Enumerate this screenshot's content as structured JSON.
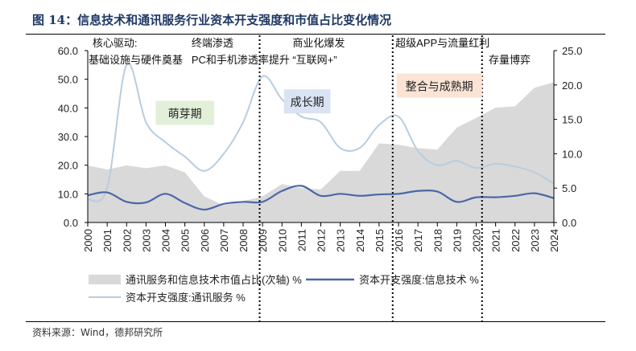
{
  "title": "图 14：信息技术和通讯服务行业资本开支强度和市值占比变化情况",
  "source": "资料来源：Wind，德邦研究所",
  "chart_data": {
    "type": "line",
    "x": [
      "2000",
      "2001",
      "2002",
      "2003",
      "2004",
      "2005",
      "2006",
      "2007",
      "2008",
      "2009",
      "2010",
      "2011",
      "2012",
      "2013",
      "2014",
      "2015",
      "2016",
      "2017",
      "2018",
      "2019",
      "2020",
      "2021",
      "2022",
      "2023",
      "2024"
    ],
    "series": [
      {
        "name": "通讯服务和信息技术市值占比(次轴) %",
        "type": "area",
        "axis": "right",
        "color": "#d9d9d9",
        "values": [
          8.3,
          7.7,
          8.3,
          7.9,
          8.3,
          7.3,
          3.8,
          2.5,
          3.1,
          3.8,
          5.6,
          5.0,
          4.8,
          7.5,
          7.5,
          11.5,
          11.3,
          10.8,
          10.6,
          13.8,
          15.2,
          16.7,
          16.9,
          19.6,
          20.4
        ]
      },
      {
        "name": "资本开支强度:信息技术 %",
        "type": "line",
        "axis": "left",
        "color": "#4a67a8",
        "values": [
          9.5,
          10.5,
          7.2,
          7.0,
          10.0,
          6.8,
          4.5,
          6.5,
          7.2,
          7.2,
          11.0,
          12.8,
          9.3,
          10.0,
          9.3,
          9.8,
          10.0,
          11.0,
          10.8,
          7.2,
          8.8,
          8.8,
          9.3,
          10.2,
          8.5
        ]
      },
      {
        "name": "资本开支强度:通讯服务 %",
        "type": "line",
        "axis": "left",
        "color": "#b8cde0",
        "values": [
          8.0,
          12.0,
          55.0,
          35.0,
          28.0,
          23.0,
          18.0,
          24.0,
          35.0,
          51.0,
          43.0,
          37.0,
          35.0,
          26.0,
          26.0,
          34.0,
          37.0,
          25.0,
          20.0,
          21.5,
          19.0,
          20.5,
          19.5,
          17.5,
          13.5
        ]
      }
    ],
    "left_axis": {
      "range": [
        0,
        60
      ],
      "ticks": [
        "0.0",
        "10.0",
        "20.0",
        "30.0",
        "40.0",
        "50.0",
        "60.0"
      ]
    },
    "right_axis": {
      "range": [
        0,
        25
      ],
      "ticks": [
        "0.0",
        "5.0",
        "10.0",
        "15.0",
        "20.0",
        "25.0"
      ]
    },
    "dividers_at_year": [
      2008.85,
      2015.7,
      2020.3
    ],
    "annotations": [
      {
        "text": "核心驱动:",
        "at": 2000.2
      },
      {
        "text": "基础设施与硬件奠基",
        "at": 2000.0
      },
      {
        "text": "终端渗透",
        "at": 2005.3
      },
      {
        "text": "PC和手机渗透率提升",
        "at": 2005.3
      },
      {
        "text": "商业化爆发",
        "at": 2010.5
      },
      {
        "text": "“互联网+”",
        "at": 2010.5
      },
      {
        "text": "超级APP与流量红利",
        "at": 2015.8
      },
      {
        "text": "存量博弈",
        "at": 2020.6
      }
    ],
    "phases": [
      {
        "label": "萌芽期",
        "color": "#e2efd9",
        "from": 2003.5,
        "to": 2006.5,
        "y": 38
      },
      {
        "label": "成长期",
        "color": "#dae3f3",
        "from": 2010.1,
        "to": 2012.5,
        "y": 42
      },
      {
        "label": "整合与成熟期",
        "color": "#fbe4d5",
        "from": 2015.9,
        "to": 2020.3,
        "y": 47.5
      }
    ],
    "legend_position": "bottom"
  }
}
